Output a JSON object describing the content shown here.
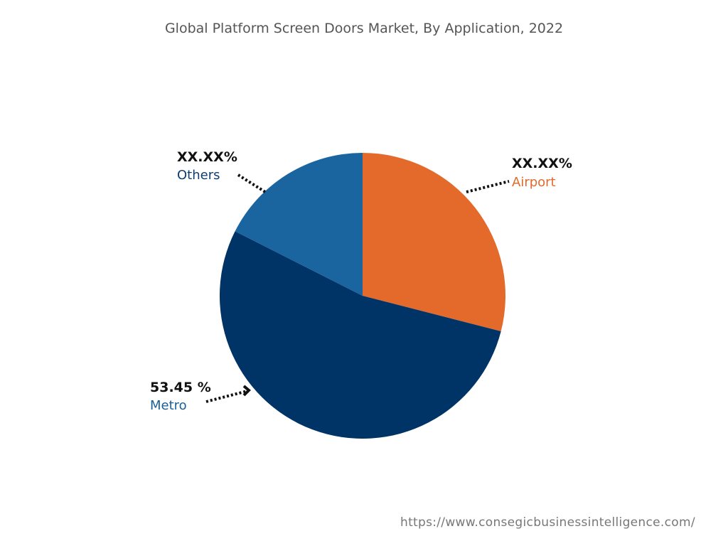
{
  "chart_data": {
    "type": "pie",
    "title": "Global Platform Screen Doors Market, By Application, 2022",
    "start_angle_deg": 0,
    "direction": "clockwise",
    "slices": [
      {
        "name": "Airport",
        "value": 29.0,
        "label": "XX.XX%",
        "color": "#E36A2A",
        "label_color": "#E36A2A"
      },
      {
        "name": "Metro",
        "value": 53.45,
        "label": "53.45 %",
        "color": "#003366",
        "label_color": "#1A5E98"
      },
      {
        "name": "Others",
        "value": 17.55,
        "label": "XX.XX%",
        "color": "#1A64A0",
        "label_color": "#0F3D6E"
      }
    ]
  },
  "source_url": "https://www.consegicbusinessintelligence.com/"
}
